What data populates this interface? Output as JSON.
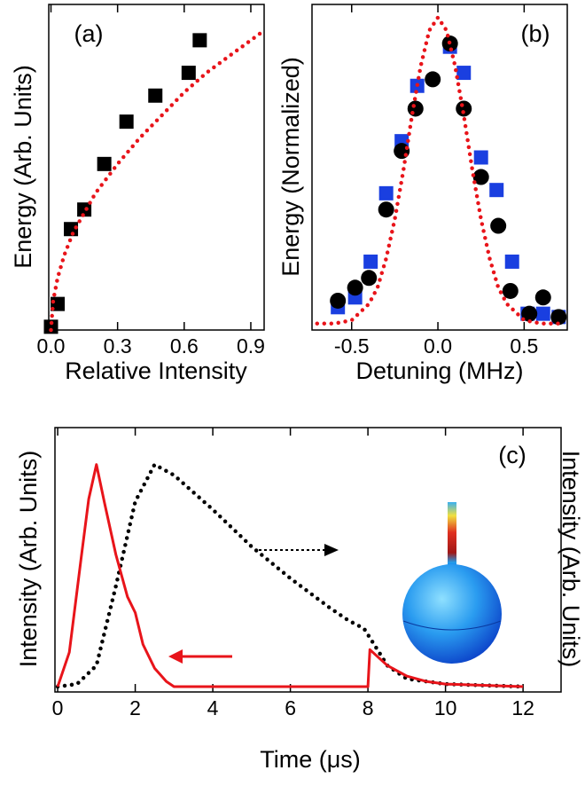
{
  "chart_data": [
    {
      "type": "scatter",
      "panel_label": "(a)",
      "x_label": "Relative Intensity",
      "y_label": "Energy (Arb. Units)",
      "xlim": [
        -0.01,
        0.96
      ],
      "ylim": [
        0,
        1
      ],
      "xticks": [
        {
          "value": 0,
          "label": "0.0"
        },
        0.3,
        0.6,
        0.9
      ],
      "series": [
        {
          "style": "square",
          "color": "#000000",
          "x": [
            0.0,
            0.03,
            0.09,
            0.15,
            0.24,
            0.34,
            0.47,
            0.62,
            0.67
          ],
          "values": [
            0.01,
            0.08,
            0.31,
            0.37,
            0.51,
            0.64,
            0.72,
            0.79,
            0.89
          ]
        },
        {
          "style": "dotted-line",
          "color": "#e8141a",
          "x": [
            0,
            0.01,
            0.03,
            0.06,
            0.1,
            0.2,
            0.3,
            0.4,
            0.5,
            0.6,
            0.7,
            0.8,
            0.9,
            0.96
          ],
          "values": [
            0,
            0.09,
            0.16,
            0.23,
            0.3,
            0.42,
            0.51,
            0.59,
            0.66,
            0.73,
            0.79,
            0.84,
            0.89,
            0.92
          ]
        }
      ]
    },
    {
      "type": "scatter",
      "panel_label": "(b)",
      "x_label": "Detuning (MHz)",
      "y_label": "Energy (Normalized)",
      "xlim": [
        -0.73,
        0.75
      ],
      "ylim": [
        0,
        1
      ],
      "xticks": [
        -0.5,
        {
          "value": 0,
          "label": "0.0"
        },
        0.5
      ],
      "series": [
        {
          "style": "square",
          "color": "#1a3fe0",
          "x": [
            -0.58,
            -0.48,
            -0.39,
            -0.3,
            -0.21,
            -0.12,
            0.07,
            0.15,
            0.25,
            0.34,
            0.43,
            0.52,
            0.61,
            0.7
          ],
          "values": [
            0.07,
            0.1,
            0.21,
            0.42,
            0.58,
            0.75,
            0.87,
            0.79,
            0.53,
            0.43,
            0.21,
            0.05,
            0.05,
            0.04
          ]
        },
        {
          "style": "circle",
          "color": "#000000",
          "x": [
            -0.58,
            -0.48,
            -0.4,
            -0.3,
            -0.21,
            -0.13,
            -0.03,
            0.07,
            0.15,
            0.25,
            0.35,
            0.42,
            0.53,
            0.61,
            0.7
          ],
          "values": [
            0.09,
            0.13,
            0.16,
            0.37,
            0.55,
            0.68,
            0.77,
            0.88,
            0.68,
            0.47,
            0.32,
            0.12,
            0.05,
            0.1,
            0.04
          ]
        },
        {
          "style": "dotted-line",
          "color": "#e8141a",
          "x": [
            -0.7,
            -0.6,
            -0.5,
            -0.4,
            -0.35,
            -0.3,
            -0.25,
            -0.2,
            -0.15,
            -0.1,
            -0.05,
            0,
            0.05,
            0.1,
            0.15,
            0.2,
            0.25,
            0.3,
            0.35,
            0.4,
            0.5,
            0.6,
            0.7
          ],
          "values": [
            0.02,
            0.02,
            0.03,
            0.08,
            0.13,
            0.22,
            0.34,
            0.49,
            0.66,
            0.81,
            0.92,
            0.96,
            0.92,
            0.81,
            0.66,
            0.49,
            0.34,
            0.22,
            0.13,
            0.08,
            0.03,
            0.02,
            0.02
          ]
        }
      ]
    },
    {
      "type": "line",
      "panel_label": "(c)",
      "x_label": "Time (μs)",
      "y_label": "Intensity (Arb. Units)",
      "y2_label": "Intensity (Arb. Units)",
      "xlim": [
        -0.07,
        12.98
      ],
      "ylim": [
        0,
        1
      ],
      "xticks": [
        0,
        2,
        4,
        6,
        8,
        10,
        12
      ],
      "series": [
        {
          "style": "dotted-line",
          "color": "#000000",
          "x": [
            0,
            0.5,
            1,
            1.5,
            2,
            2.5,
            3,
            4,
            5,
            6,
            7,
            7.5,
            7.9,
            8.2,
            8.5,
            9,
            10,
            12
          ],
          "values": [
            0.02,
            0.03,
            0.1,
            0.4,
            0.72,
            0.86,
            0.82,
            0.69,
            0.55,
            0.43,
            0.32,
            0.27,
            0.24,
            0.17,
            0.1,
            0.05,
            0.03,
            0.02
          ]
        },
        {
          "style": "solid-line",
          "color": "#e8141a",
          "x": [
            0,
            0.3,
            0.6,
            0.8,
            1.0,
            1.2,
            1.5,
            1.8,
            2.0,
            2.2,
            2.5,
            2.8,
            3.0,
            8.0,
            8.05,
            8.5,
            9,
            9.5,
            10,
            12
          ],
          "values": [
            0.02,
            0.15,
            0.5,
            0.73,
            0.86,
            0.72,
            0.52,
            0.36,
            0.3,
            0.18,
            0.09,
            0.04,
            0.02,
            0.02,
            0.16,
            0.1,
            0.06,
            0.04,
            0.03,
            0.02
          ]
        }
      ]
    }
  ]
}
